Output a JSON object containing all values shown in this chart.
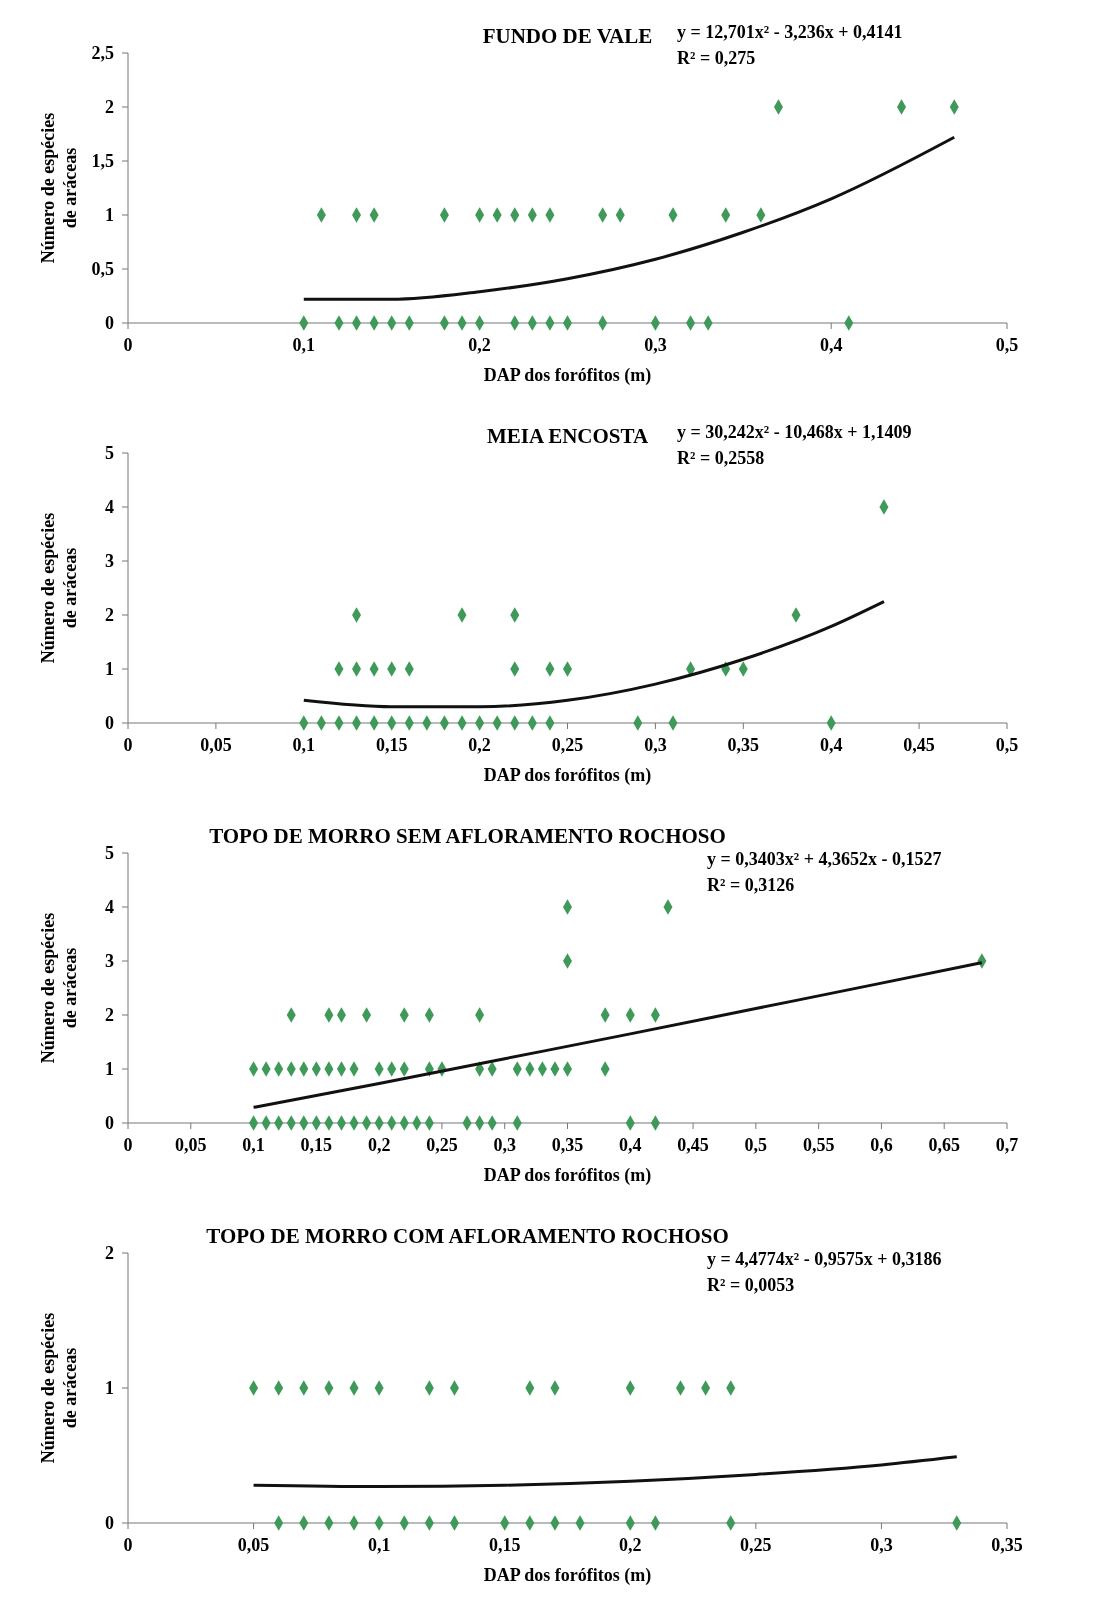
{
  "chart_data": [
    {
      "type": "scatter",
      "title": "FUNDO DE VALE",
      "xlabel": "DAP dos forófitos (m)",
      "ylabel": "Número de espécies de aráceas",
      "annotations": [
        "y = 12,701x² - 3,236x + 0,4141",
        "R² = 0,275"
      ],
      "marker": "diamond",
      "grid": false,
      "xlim": [
        0,
        0.5
      ],
      "xticks": [
        {
          "value": 0,
          "label": "0"
        },
        {
          "value": 0.1,
          "label": "0,1"
        },
        {
          "value": 0.2,
          "label": "0,2"
        },
        {
          "value": 0.3,
          "label": "0,3"
        },
        {
          "value": 0.4,
          "label": "0,4"
        },
        {
          "value": 0.5,
          "label": "0,5"
        }
      ],
      "ylim": [
        0,
        2.5
      ],
      "yticks": [
        0,
        {
          "value": 0.5,
          "label": "0,5"
        },
        1,
        {
          "value": 1.5,
          "label": "1,5"
        },
        2,
        {
          "value": 2.5,
          "label": "2,5"
        }
      ],
      "series": [
        {
          "type": "scatter",
          "color": "#3f9a5a",
          "x": [
            0.11,
            0.13,
            0.14,
            0.18,
            0.2,
            0.21,
            0.22,
            0.23,
            0.24,
            0.27,
            0.28,
            0.31,
            0.34,
            0.36,
            0.37,
            0.44,
            0.47,
            0.1,
            0.12,
            0.13,
            0.14,
            0.15,
            0.16,
            0.18,
            0.19,
            0.2,
            0.22,
            0.23,
            0.24,
            0.25,
            0.27,
            0.3,
            0.32,
            0.33,
            0.41
          ],
          "values": [
            1,
            1,
            1,
            1,
            1,
            1,
            1,
            1,
            1,
            1,
            1,
            1,
            1,
            1,
            2,
            2,
            2,
            0,
            0,
            0,
            0,
            0,
            0,
            0,
            0,
            0,
            0,
            0,
            0,
            0,
            0,
            0,
            0,
            0,
            0
          ]
        },
        {
          "type": "line",
          "color": "#111111",
          "marker": "none",
          "x": [
            0.1,
            0.15,
            0.2,
            0.25,
            0.3,
            0.35,
            0.4,
            0.47
          ],
          "values": [
            0.22,
            0.22,
            0.29,
            0.41,
            0.59,
            0.84,
            1.15,
            1.72
          ]
        }
      ]
    },
    {
      "type": "scatter",
      "title": "MEIA ENCOSTA",
      "xlabel": "DAP dos forófitos (m)",
      "ylabel": "Número de espécies de aráceas",
      "annotations": [
        "y = 30,242x² - 10,468x + 1,1409",
        "R² = 0,2558"
      ],
      "marker": "diamond",
      "grid": false,
      "xlim": [
        0,
        0.5
      ],
      "xticks": [
        {
          "value": 0,
          "label": "0"
        },
        {
          "value": 0.05,
          "label": "0,05"
        },
        {
          "value": 0.1,
          "label": "0,1"
        },
        {
          "value": 0.15,
          "label": "0,15"
        },
        {
          "value": 0.2,
          "label": "0,2"
        },
        {
          "value": 0.25,
          "label": "0,25"
        },
        {
          "value": 0.3,
          "label": "0,3"
        },
        {
          "value": 0.35,
          "label": "0,35"
        },
        {
          "value": 0.4,
          "label": "0,4"
        },
        {
          "value": 0.45,
          "label": "0,45"
        },
        {
          "value": 0.5,
          "label": "0,5"
        }
      ],
      "ylim": [
        0,
        5
      ],
      "yticks": [
        0,
        1,
        2,
        3,
        4,
        5
      ],
      "series": [
        {
          "type": "scatter",
          "color": "#3f9a5a",
          "x": [
            0.1,
            0.11,
            0.12,
            0.13,
            0.14,
            0.15,
            0.16,
            0.17,
            0.18,
            0.19,
            0.2,
            0.21,
            0.22,
            0.23,
            0.24,
            0.29,
            0.31,
            0.4,
            0.12,
            0.13,
            0.14,
            0.15,
            0.16,
            0.22,
            0.24,
            0.25,
            0.32,
            0.34,
            0.35,
            0.13,
            0.19,
            0.22,
            0.38,
            0.43
          ],
          "values": [
            0,
            0,
            0,
            0,
            0,
            0,
            0,
            0,
            0,
            0,
            0,
            0,
            0,
            0,
            0,
            0,
            0,
            0,
            1,
            1,
            1,
            1,
            1,
            1,
            1,
            1,
            1,
            1,
            1,
            2,
            2,
            2,
            2,
            4
          ]
        },
        {
          "type": "line",
          "color": "#111111",
          "marker": "none",
          "x": [
            0.1,
            0.15,
            0.2,
            0.25,
            0.3,
            0.35,
            0.4,
            0.43
          ],
          "values": [
            0.42,
            0.3,
            0.3,
            0.42,
            0.72,
            1.18,
            1.79,
            2.25
          ]
        }
      ]
    },
    {
      "type": "scatter",
      "title": "TOPO DE MORRO SEM AFLORAMENTO ROCHOSO",
      "xlabel": "DAP dos forófitos (m)",
      "ylabel": "Número de espécies de aráceas",
      "annotations": [
        "y = 0,3403x² + 4,3652x - 0,1527",
        "R² = 0,3126"
      ],
      "marker": "diamond",
      "grid": false,
      "xlim": [
        0,
        0.7
      ],
      "xticks": [
        {
          "value": 0,
          "label": "0"
        },
        {
          "value": 0.05,
          "label": "0,05"
        },
        {
          "value": 0.1,
          "label": "0,1"
        },
        {
          "value": 0.15,
          "label": "0,15"
        },
        {
          "value": 0.2,
          "label": "0,2"
        },
        {
          "value": 0.25,
          "label": "0,25"
        },
        {
          "value": 0.3,
          "label": "0,3"
        },
        {
          "value": 0.35,
          "label": "0,35"
        },
        {
          "value": 0.4,
          "label": "0,4"
        },
        {
          "value": 0.45,
          "label": "0,45"
        },
        {
          "value": 0.5,
          "label": "0,5"
        },
        {
          "value": 0.55,
          "label": "0,55"
        },
        {
          "value": 0.6,
          "label": "0,6"
        },
        {
          "value": 0.65,
          "label": "0,65"
        },
        {
          "value": 0.7,
          "label": "0,7"
        }
      ],
      "ylim": [
        0,
        5
      ],
      "yticks": [
        0,
        1,
        2,
        3,
        4,
        5
      ],
      "series": [
        {
          "type": "scatter",
          "color": "#3f9a5a",
          "x": [
            0.1,
            0.11,
            0.12,
            0.13,
            0.14,
            0.15,
            0.16,
            0.17,
            0.18,
            0.19,
            0.2,
            0.21,
            0.22,
            0.23,
            0.24,
            0.27,
            0.28,
            0.29,
            0.31,
            0.4,
            0.42,
            0.1,
            0.11,
            0.12,
            0.13,
            0.14,
            0.15,
            0.16,
            0.17,
            0.18,
            0.2,
            0.21,
            0.22,
            0.24,
            0.25,
            0.28,
            0.29,
            0.31,
            0.32,
            0.33,
            0.34,
            0.35,
            0.38,
            0.13,
            0.16,
            0.17,
            0.19,
            0.22,
            0.24,
            0.28,
            0.38,
            0.4,
            0.42,
            0.35,
            0.68,
            0.35,
            0.43
          ],
          "values": [
            0,
            0,
            0,
            0,
            0,
            0,
            0,
            0,
            0,
            0,
            0,
            0,
            0,
            0,
            0,
            0,
            0,
            0,
            0,
            0,
            0,
            1,
            1,
            1,
            1,
            1,
            1,
            1,
            1,
            1,
            1,
            1,
            1,
            1,
            1,
            1,
            1,
            1,
            1,
            1,
            1,
            1,
            1,
            2,
            2,
            2,
            2,
            2,
            2,
            2,
            2,
            2,
            2,
            3,
            3,
            4,
            4
          ]
        },
        {
          "type": "line",
          "color": "#111111",
          "marker": "none",
          "x": [
            0.1,
            0.2,
            0.3,
            0.4,
            0.5,
            0.6,
            0.68
          ],
          "values": [
            0.29,
            0.73,
            1.19,
            1.65,
            2.12,
            2.59,
            2.97
          ]
        }
      ]
    },
    {
      "type": "scatter",
      "title": "TOPO DE MORRO COM AFLORAMENTO ROCHOSO",
      "xlabel": "DAP dos forófitos (m)",
      "ylabel": "Número de espécies de aráceas",
      "annotations": [
        "y = 4,4774x² - 0,9575x + 0,3186",
        "R² = 0,0053"
      ],
      "marker": "diamond",
      "grid": false,
      "xlim": [
        0,
        0.35
      ],
      "xticks": [
        {
          "value": 0,
          "label": "0"
        },
        {
          "value": 0.05,
          "label": "0,05"
        },
        {
          "value": 0.1,
          "label": "0,1"
        },
        {
          "value": 0.15,
          "label": "0,15"
        },
        {
          "value": 0.2,
          "label": "0,2"
        },
        {
          "value": 0.25,
          "label": "0,25"
        },
        {
          "value": 0.3,
          "label": "0,3"
        },
        {
          "value": 0.35,
          "label": "0,35"
        }
      ],
      "ylim": [
        0,
        2
      ],
      "yticks": [
        0,
        1,
        2
      ],
      "series": [
        {
          "type": "scatter",
          "color": "#3f9a5a",
          "x": [
            0.05,
            0.06,
            0.07,
            0.08,
            0.09,
            0.1,
            0.12,
            0.13,
            0.16,
            0.17,
            0.2,
            0.22,
            0.23,
            0.24,
            0.06,
            0.07,
            0.08,
            0.09,
            0.1,
            0.11,
            0.12,
            0.13,
            0.15,
            0.16,
            0.17,
            0.18,
            0.2,
            0.21,
            0.24,
            0.33
          ],
          "values": [
            1,
            1,
            1,
            1,
            1,
            1,
            1,
            1,
            1,
            1,
            1,
            1,
            1,
            1,
            0,
            0,
            0,
            0,
            0,
            0,
            0,
            0,
            0,
            0,
            0,
            0,
            0,
            0,
            0,
            0
          ]
        },
        {
          "type": "line",
          "color": "#111111",
          "marker": "none",
          "x": [
            0.05,
            0.1,
            0.15,
            0.2,
            0.25,
            0.3,
            0.33
          ],
          "values": [
            0.28,
            0.27,
            0.28,
            0.31,
            0.36,
            0.43,
            0.49
          ]
        }
      ]
    }
  ]
}
